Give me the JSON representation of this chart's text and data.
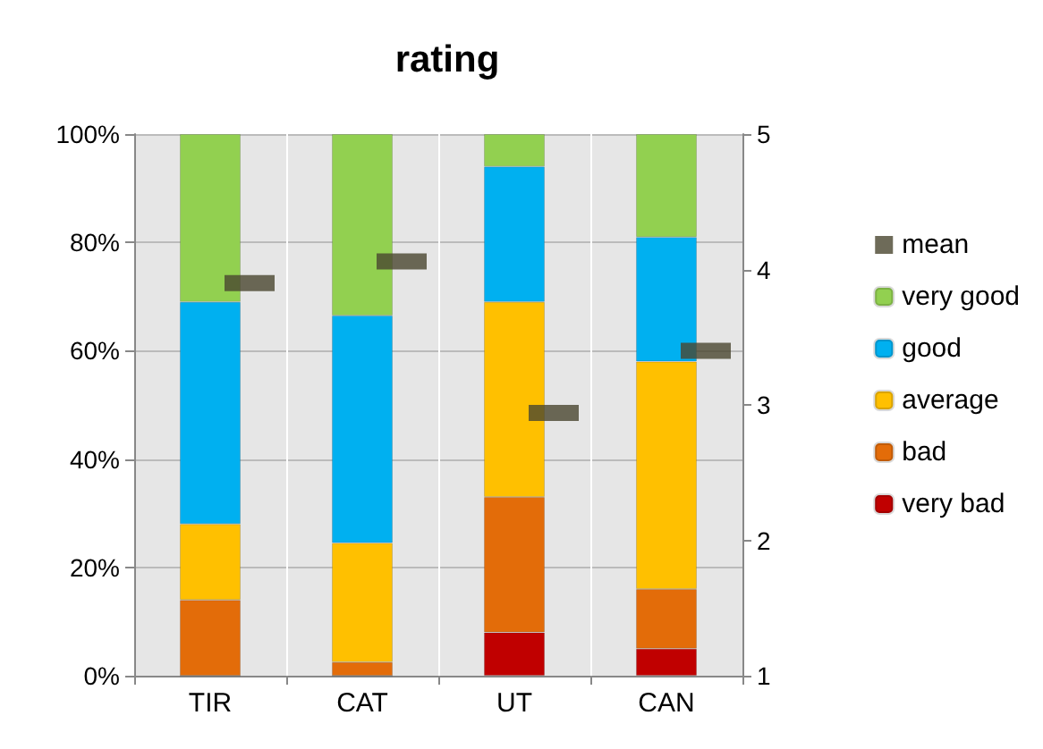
{
  "chart_data": {
    "type": "bar",
    "title": "rating",
    "categories": [
      "TIR",
      "CAT",
      "UT",
      "CAN"
    ],
    "stacked": true,
    "series": [
      {
        "name": "very bad",
        "color": "#c00000",
        "values": [
          0,
          0,
          8,
          5
        ]
      },
      {
        "name": "bad",
        "color": "#e36c09",
        "values": [
          14,
          2.5,
          25,
          11
        ]
      },
      {
        "name": "average",
        "color": "#ffc000",
        "values": [
          14,
          22,
          36,
          42
        ]
      },
      {
        "name": "good",
        "color": "#00b0f0",
        "values": [
          41,
          42,
          25,
          23
        ]
      },
      {
        "name": "very good",
        "color": "#92d050",
        "values": [
          31,
          33.5,
          6,
          19
        ]
      },
      {
        "name": "mean",
        "type": "scatter",
        "axis": "y2",
        "marker": "square",
        "color": "#4a4630",
        "values": [
          3.9,
          4.06,
          2.94,
          3.4
        ]
      }
    ],
    "ylim": [
      0,
      100
    ],
    "yticks": [
      {
        "value": 0,
        "label": "0%"
      },
      {
        "value": 20,
        "label": "20%"
      },
      {
        "value": 40,
        "label": "40%"
      },
      {
        "value": 60,
        "label": "60%"
      },
      {
        "value": 80,
        "label": "80%"
      },
      {
        "value": 100,
        "label": "100%"
      }
    ],
    "y2lim": [
      1,
      5
    ],
    "y2ticks": [
      1,
      2,
      3,
      4,
      5
    ],
    "grid": "y",
    "legend": "right"
  }
}
